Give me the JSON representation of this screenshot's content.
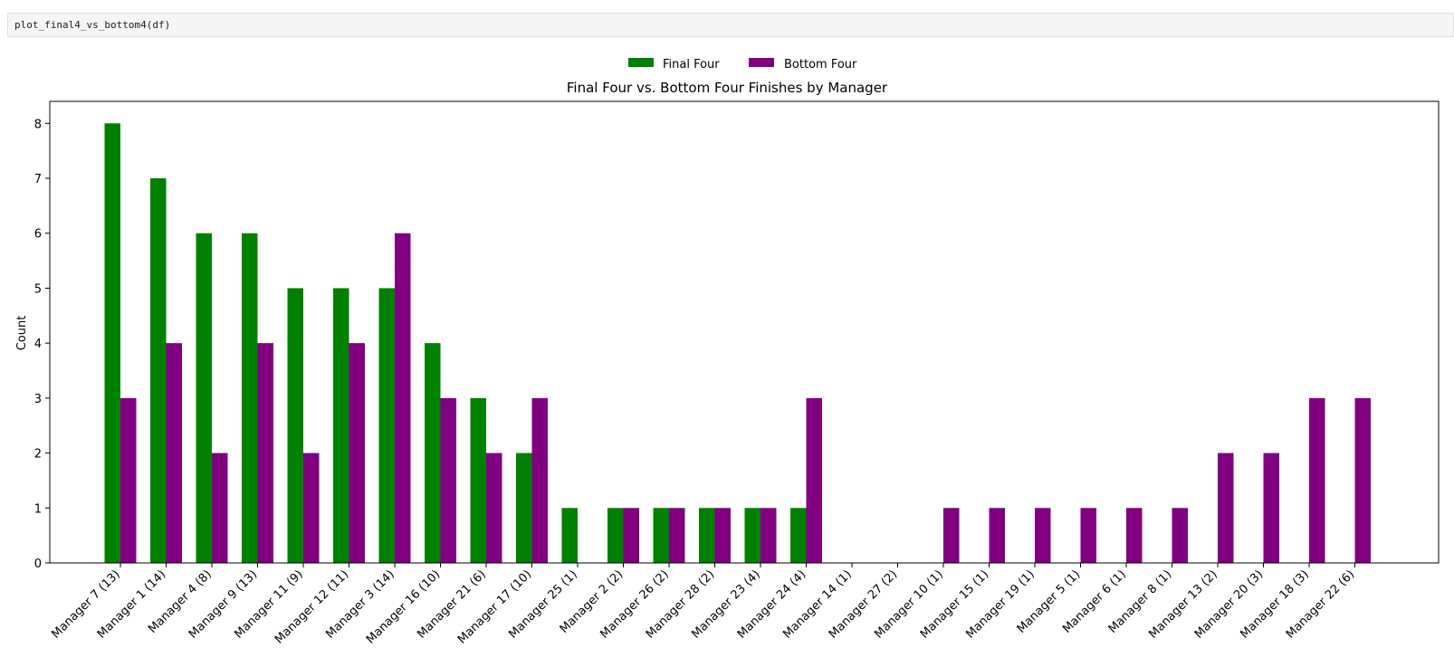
{
  "code_cell": {
    "source": "plot_final4_vs_bottom4(df)"
  },
  "chart_data": {
    "type": "bar",
    "title": "Final Four vs. Bottom Four Finishes by Manager",
    "xlabel": "",
    "ylabel": "Count",
    "ylim": [
      0,
      8.4
    ],
    "yticks": [
      0,
      1,
      2,
      3,
      4,
      5,
      6,
      7,
      8
    ],
    "legend_position": "top-center",
    "categories": [
      "Manager 7 (13)",
      "Manager 1 (14)",
      "Manager 4 (8)",
      "Manager 9 (13)",
      "Manager 11 (9)",
      "Manager 12 (11)",
      "Manager 3 (14)",
      "Manager 16 (10)",
      "Manager 21 (6)",
      "Manager 17 (10)",
      "Manager 25 (1)",
      "Manager 2 (2)",
      "Manager 26 (2)",
      "Manager 28 (2)",
      "Manager 23 (4)",
      "Manager 24 (4)",
      "Manager 14 (1)",
      "Manager 27 (2)",
      "Manager 10 (1)",
      "Manager 15 (1)",
      "Manager 19 (1)",
      "Manager 5 (1)",
      "Manager 6 (1)",
      "Manager 8 (1)",
      "Manager 13 (2)",
      "Manager 20 (3)",
      "Manager 18 (3)",
      "Manager 22 (6)"
    ],
    "series": [
      {
        "name": "Final Four",
        "color": "#008000",
        "values": [
          8,
          7,
          6,
          6,
          5,
          5,
          5,
          4,
          3,
          2,
          1,
          1,
          1,
          1,
          1,
          1,
          0,
          0,
          0,
          0,
          0,
          0,
          0,
          0,
          0,
          0,
          0,
          0
        ]
      },
      {
        "name": "Bottom Four",
        "color": "#800080",
        "values": [
          3,
          4,
          2,
          4,
          2,
          4,
          6,
          3,
          2,
          3,
          0,
          1,
          1,
          1,
          1,
          3,
          0,
          0,
          1,
          1,
          1,
          1,
          1,
          1,
          2,
          2,
          3,
          3
        ]
      }
    ]
  }
}
